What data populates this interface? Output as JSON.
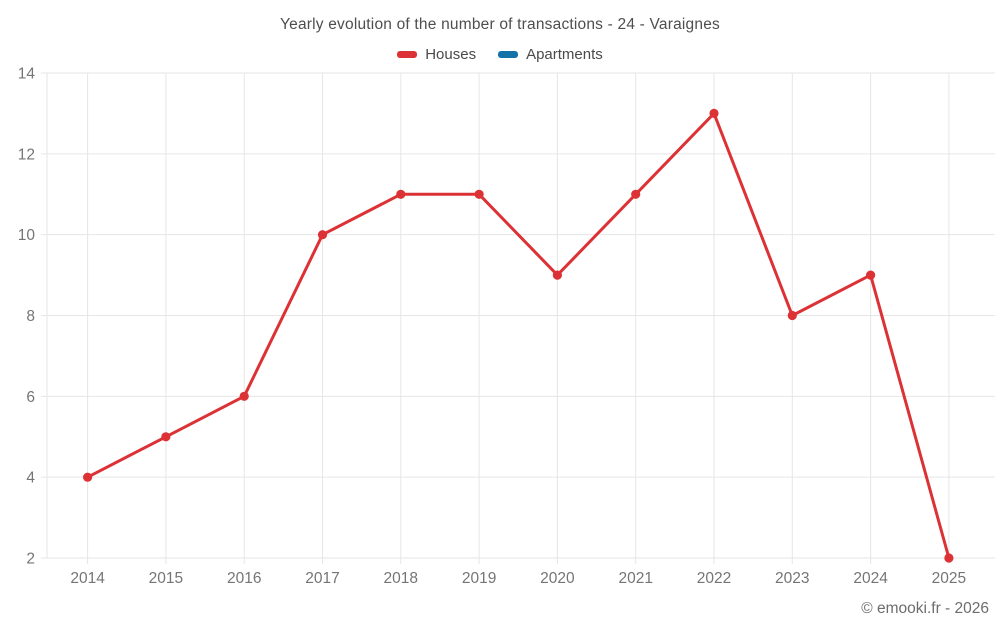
{
  "title": "Yearly evolution of the number of transactions - 24 - Varaignes",
  "legend": {
    "items": [
      {
        "label": "Houses",
        "color": "#dc3235"
      },
      {
        "label": "Apartments",
        "color": "#1572a8"
      }
    ]
  },
  "footer": "© emooki.fr - 2026",
  "colors": {
    "houses": "#dc3235",
    "apartments": "#1572a8",
    "gridline": "#e6e6e6",
    "axis_label": "#757575",
    "title_text": "#4e4e4e",
    "footer_text": "#6d6d6d",
    "background": "#ffffff"
  },
  "chart_data": {
    "type": "line",
    "title": "Yearly evolution of the number of transactions - 24 - Varaignes",
    "categories": [
      "2014",
      "2015",
      "2016",
      "2017",
      "2018",
      "2019",
      "2020",
      "2021",
      "2022",
      "2023",
      "2024",
      "2025"
    ],
    "series": [
      {
        "name": "Houses",
        "color": "#dc3235",
        "values": [
          4,
          5,
          6,
          10,
          11,
          11,
          9,
          11,
          13,
          8,
          9,
          2
        ]
      },
      {
        "name": "Apartments",
        "color": "#1572a8",
        "values": []
      }
    ],
    "xlabel": "",
    "ylabel": "",
    "ylim": [
      2,
      14
    ],
    "yticks": [
      2,
      4,
      6,
      8,
      10,
      12,
      14
    ],
    "grid": true,
    "legend_position": "top",
    "marker": "circle",
    "annotation": "© emooki.fr - 2026"
  }
}
